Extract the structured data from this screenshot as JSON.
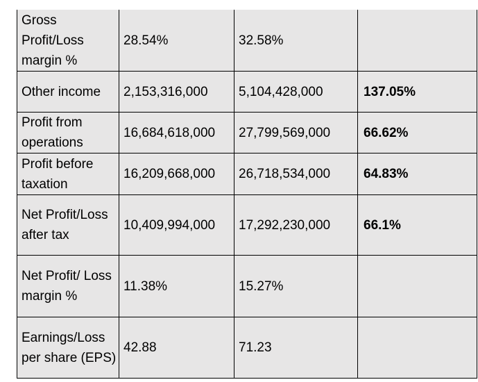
{
  "rows": [
    {
      "label": "Gross Profit/Loss margin %",
      "prev": "28.54%",
      "curr": "32.58%",
      "change": ""
    },
    {
      "label": "Other income",
      "prev": "2,153,316,000",
      "curr": "5,104,428,000",
      "change": "137.05%"
    },
    {
      "label": "Profit from operations",
      "prev": "16,684,618,000",
      "curr": "27,799,569,000",
      "change": "66.62%"
    },
    {
      "label": "Profit before taxation",
      "prev": "16,209,668,000",
      "curr": "26,718,534,000",
      "change": "64.83%"
    },
    {
      "label": "Net Profit/Loss after tax",
      "prev": "10,409,994,000",
      "curr": "17,292,230,000",
      "change": "66.1%"
    },
    {
      "label": "Net Profit/ Loss margin %",
      "prev": "11.38%",
      "curr": "15.27%",
      "change": ""
    },
    {
      "label": "Earnings/Loss per share (EPS)",
      "prev": "42.88",
      "curr": "71.23",
      "change": ""
    }
  ]
}
